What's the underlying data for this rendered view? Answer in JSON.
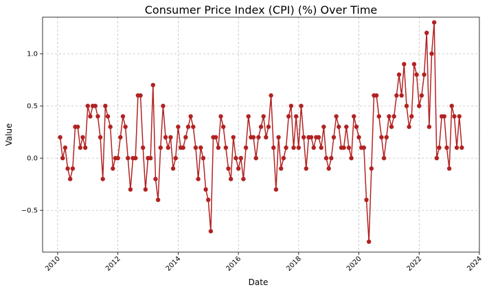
{
  "chart_data": {
    "type": "line",
    "title": "Consumer Price Index (CPI) (%) Over Time",
    "xlabel": "Date",
    "ylabel": "Value",
    "x_tick_labels": [
      "2010",
      "2012",
      "2014",
      "2016",
      "2018",
      "2020",
      "2022",
      "2024"
    ],
    "y_tick_labels": [
      "−0.5",
      "0.0",
      "0.5",
      "1.0"
    ],
    "x_ticks": [
      "2010-01",
      "2012-01",
      "2014-01",
      "2016-01",
      "2018-01",
      "2020-01",
      "2022-01",
      "2024-01"
    ],
    "y_ticks": [
      -0.5,
      0.0,
      0.5,
      1.0
    ],
    "xlim": [
      "2009-07",
      "2024-01"
    ],
    "ylim": [
      -0.9,
      1.35
    ],
    "grid": true,
    "line_color": "#b22222",
    "marker": "circle",
    "series": [
      {
        "start": "2010-02",
        "frequency": "monthly",
        "values": [
          0.2,
          0.0,
          0.1,
          -0.1,
          -0.2,
          -0.1,
          0.3,
          0.3,
          0.1,
          0.2,
          0.1,
          0.5,
          0.4,
          0.5,
          0.5,
          0.4,
          0.2,
          -0.2,
          0.5,
          0.4,
          0.3,
          -0.1,
          0.0,
          0.0,
          0.2,
          0.4,
          0.3,
          0.0,
          -0.3,
          0.0,
          0.0,
          0.6,
          0.6,
          0.1,
          -0.3,
          0.0,
          0.0,
          0.7,
          -0.2,
          -0.4,
          0.1,
          0.5,
          0.2,
          0.1,
          0.2,
          -0.1,
          0.0,
          0.3,
          0.1,
          0.1,
          0.2,
          0.3,
          0.4,
          0.3,
          0.1,
          -0.2,
          0.1,
          0.0,
          -0.3,
          -0.4,
          -0.7,
          0.2,
          0.2,
          0.1,
          0.4,
          0.3,
          0.1,
          -0.1,
          -0.2,
          0.2,
          0.0,
          -0.1,
          0.0,
          -0.2,
          0.1,
          0.4,
          0.2,
          0.2,
          0.0,
          0.2,
          0.3,
          0.4,
          0.2,
          0.3,
          0.6,
          0.1,
          -0.3,
          0.2,
          -0.1,
          0.0,
          0.1,
          0.4,
          0.5,
          0.1,
          0.4,
          0.1,
          0.5,
          0.2,
          -0.1,
          0.2,
          0.2,
          0.1,
          0.2,
          0.2,
          0.1,
          0.3,
          0.0,
          -0.1,
          0.0,
          0.2,
          0.4,
          0.3,
          0.1,
          0.1,
          0.3,
          0.1,
          0.0,
          0.4,
          0.3,
          0.2,
          0.1,
          0.1,
          -0.4,
          -0.8,
          -0.1,
          0.6,
          0.6,
          0.4,
          0.2,
          0.0,
          0.2,
          0.4,
          0.3,
          0.4,
          0.6,
          0.8,
          0.6,
          0.9,
          0.5,
          0.3,
          0.4,
          0.9,
          0.8,
          0.5,
          0.6,
          0.8,
          1.2,
          0.3,
          1.0,
          1.3,
          0.0,
          0.1,
          0.4,
          0.4,
          0.1,
          -0.1,
          0.5,
          0.4,
          0.1,
          0.4,
          0.1
        ]
      }
    ]
  }
}
